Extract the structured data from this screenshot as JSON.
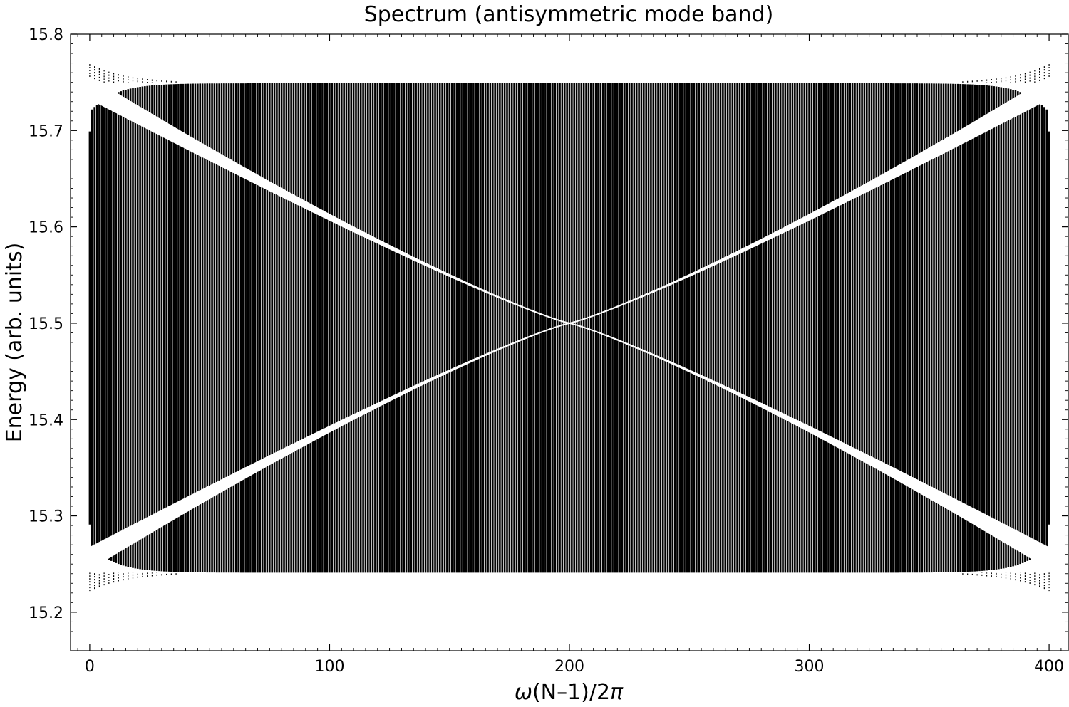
{
  "chart_data": {
    "type": "scatter",
    "title": "Spectrum (antisymmetric mode band)",
    "xlabel_symbol": "ω",
    "xlabel_rest": "(N–1)/2",
    "xlabel_pi": "π",
    "ylabel": "Energy (arb. units)",
    "xlim": [
      -8,
      408
    ],
    "ylim": [
      15.16,
      15.8
    ],
    "xticks": [
      0,
      100,
      200,
      300,
      400
    ],
    "xtick_labels": [
      "0",
      "100",
      "200",
      "300",
      "400"
    ],
    "yticks": [
      15.2,
      15.3,
      15.4,
      15.5,
      15.6,
      15.7,
      15.8
    ],
    "ytick_labels": [
      "15.2",
      "15.3",
      "15.4",
      "15.5",
      "15.6",
      "15.7",
      "15.8"
    ],
    "grid": false,
    "marker_color": "#000000",
    "band": {
      "x_range": [
        0,
        400
      ],
      "bulk_center": 15.495,
      "bulk_half_width": 0.254,
      "edge_outer_min": 15.222,
      "edge_outer_max": 15.769,
      "crossing_x": 200,
      "crossing_energy": 15.5
    }
  }
}
